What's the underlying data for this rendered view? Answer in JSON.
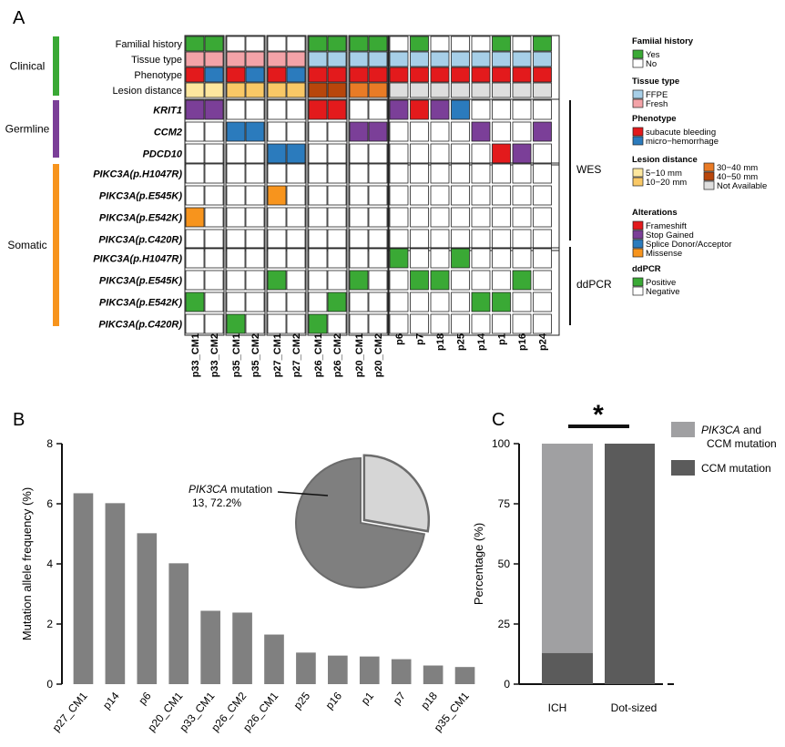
{
  "panel_labels": {
    "a": "A",
    "b": "B",
    "c": "C"
  },
  "colors": {
    "clinical": "#3aa935",
    "germline": "#7b3f98",
    "somatic": "#f7941d",
    "cell_border": "#222222",
    "familial_yes": "#3aa935",
    "ffpe": "#a7cfe8",
    "fresh": "#f3a3a8",
    "subacute": "#e31a1c",
    "micro": "#2b7bbd",
    "dist_5_10": "#fde79e",
    "dist_10_20": "#f9c866",
    "dist_30_40": "#e97b26",
    "dist_40_50": "#b8460b",
    "na": "#dedede",
    "frameshift": "#e31a1c",
    "stop": "#7b3f98",
    "splice": "#2b7bbd",
    "missense": "#f7941d",
    "positive": "#3aa935",
    "bar_b": "#808080",
    "pie_main": "#7f7f7f",
    "pie_slice": "#d6d6d6",
    "pie_edge": "#6c6c6c",
    "c_light": "#a0a0a2",
    "c_dark": "#5b5b5b"
  },
  "heatmap": {
    "columns": [
      "p33_CM1",
      "p33_CM2",
      "p35_CM1",
      "p35_CM2",
      "p27_CM1",
      "p27_CM2",
      "p26_CM1",
      "p26_CM2",
      "p20_CM1",
      "p20_CM2",
      "p6",
      "p7",
      "p18",
      "p25",
      "p14",
      "p1",
      "p16",
      "p24"
    ],
    "groups": [
      {
        "name": "Clinical",
        "color_key": "clinical"
      },
      {
        "name": "Germline",
        "color_key": "germline"
      },
      {
        "name": "Somatic",
        "color_key": "somatic"
      }
    ],
    "clinical_rows": [
      {
        "label": "Familial history",
        "cells": [
          "familial_yes",
          "familial_yes",
          "",
          "",
          "",
          "",
          "familial_yes",
          "familial_yes",
          "familial_yes",
          "familial_yes",
          "",
          "familial_yes",
          "",
          "",
          "",
          "familial_yes",
          "",
          "familial_yes"
        ]
      },
      {
        "label": "Tissue type",
        "cells": [
          "fresh",
          "fresh",
          "fresh",
          "fresh",
          "fresh",
          "fresh",
          "ffpe",
          "ffpe",
          "ffpe",
          "ffpe",
          "ffpe",
          "ffpe",
          "ffpe",
          "ffpe",
          "ffpe",
          "ffpe",
          "ffpe",
          "ffpe"
        ]
      },
      {
        "label": "Phenotype",
        "cells": [
          "subacute",
          "micro",
          "subacute",
          "micro",
          "subacute",
          "micro",
          "subacute",
          "subacute",
          "subacute",
          "subacute",
          "subacute",
          "subacute",
          "subacute",
          "subacute",
          "subacute",
          "subacute",
          "subacute",
          "subacute"
        ]
      },
      {
        "label": "Lesion distance",
        "cells": [
          "dist_5_10",
          "dist_5_10",
          "dist_10_20",
          "dist_10_20",
          "dist_10_20",
          "dist_10_20",
          "dist_40_50",
          "dist_40_50",
          "dist_30_40",
          "dist_30_40",
          "na",
          "na",
          "na",
          "na",
          "na",
          "na",
          "na",
          "na"
        ]
      }
    ],
    "germline_rows": [
      {
        "label": "KRIT1",
        "cells": [
          "stop",
          "stop",
          "",
          "",
          "",
          "",
          "frameshift",
          "frameshift",
          "",
          "",
          "stop",
          "frameshift",
          "stop",
          "splice",
          "",
          "",
          "",
          ""
        ]
      },
      {
        "label": "CCM2",
        "cells": [
          "",
          "",
          "splice",
          "splice",
          "",
          "",
          "",
          "",
          "stop",
          "stop",
          "",
          "",
          "",
          "",
          "stop",
          "",
          "",
          "stop"
        ]
      },
      {
        "label": "PDCD10",
        "cells": [
          "",
          "",
          "",
          "",
          "splice",
          "splice",
          "",
          "",
          "",
          "",
          "",
          "",
          "",
          "",
          "",
          "frameshift",
          "stop",
          ""
        ]
      }
    ],
    "wes_rows": [
      {
        "label": "PIKC3A(p.H1047R)",
        "cells": [
          "",
          "",
          "",
          "",
          "",
          "",
          "",
          "",
          "",
          "",
          "",
          "",
          "",
          "",
          "",
          "",
          "",
          ""
        ]
      },
      {
        "label": "PIKC3A(p.E545K)",
        "cells": [
          "",
          "",
          "",
          "",
          "missense",
          "",
          "",
          "",
          "",
          "",
          "",
          "",
          "",
          "",
          "",
          "",
          "",
          ""
        ]
      },
      {
        "label": "PIKC3A(p.E542K)",
        "cells": [
          "missense",
          "",
          "",
          "",
          "",
          "",
          "",
          "",
          "",
          "",
          "",
          "",
          "",
          "",
          "",
          "",
          "",
          ""
        ]
      },
      {
        "label": "PIKC3A(p.C420R)",
        "cells": [
          "",
          "",
          "",
          "",
          "",
          "",
          "",
          "",
          "",
          "",
          "",
          "",
          "",
          "",
          "",
          "",
          "",
          ""
        ]
      }
    ],
    "ddpcr_rows": [
      {
        "label": "PIKC3A(p.H1047R)",
        "cells": [
          "",
          "",
          "",
          "",
          "",
          "",
          "",
          "",
          "",
          "",
          "positive",
          "",
          "",
          "positive",
          "",
          "",
          "",
          ""
        ]
      },
      {
        "label": "PIKC3A(p.E545K)",
        "cells": [
          "",
          "",
          "",
          "",
          "positive",
          "",
          "",
          "",
          "positive",
          "",
          "",
          "positive",
          "positive",
          "",
          "",
          "",
          "positive",
          ""
        ]
      },
      {
        "label": "PIKC3A(p.E542K)",
        "cells": [
          "positive",
          "",
          "",
          "",
          "",
          "",
          "",
          "positive",
          "",
          "",
          "",
          "",
          "",
          "",
          "positive",
          "positive",
          "",
          ""
        ]
      },
      {
        "label": "PIKC3A(p.C420R)",
        "cells": [
          "",
          "",
          "positive",
          "",
          "",
          "",
          "positive",
          "",
          "",
          "",
          "",
          "",
          "",
          "",
          "",
          "",
          "",
          ""
        ]
      }
    ],
    "bracket_labels": {
      "wes": "WES",
      "ddpcr": "ddPCR"
    }
  },
  "legend": [
    {
      "title": "Famiial history",
      "items": [
        {
          "label": "Yes",
          "color_key": "familial_yes"
        },
        {
          "label": "No",
          "color_key": ""
        }
      ]
    },
    {
      "title": "Tissue type",
      "items": [
        {
          "label": "FFPE",
          "color_key": "ffpe"
        },
        {
          "label": "Fresh",
          "color_key": "fresh"
        }
      ]
    },
    {
      "title": "Phenotype",
      "items": [
        {
          "label": "subacute bleeding",
          "color_key": "subacute"
        },
        {
          "label": "micro−hemorrhage",
          "color_key": "micro"
        }
      ]
    },
    {
      "title": "Lesion distance",
      "items": [
        {
          "label": "5−10 mm",
          "color_key": "dist_5_10"
        },
        {
          "label": "10−20 mm",
          "color_key": "dist_10_20"
        }
      ],
      "items_right": [
        {
          "label": "30−40 mm",
          "color_key": "dist_30_40"
        },
        {
          "label": "40−50 mm",
          "color_key": "dist_40_50"
        },
        {
          "label": "Not Available",
          "color_key": "na"
        }
      ]
    },
    {
      "title": "Alterations",
      "items": [
        {
          "label": "Frameshift",
          "color_key": "frameshift"
        },
        {
          "label": "Stop Gained",
          "color_key": "stop"
        },
        {
          "label": "Splice Donor/Acceptor",
          "color_key": "splice"
        },
        {
          "label": "Missense",
          "color_key": "missense"
        }
      ]
    },
    {
      "title": "ddPCR",
      "items": [
        {
          "label": "Positive",
          "color_key": "positive"
        },
        {
          "label": "Negative",
          "color_key": ""
        }
      ]
    }
  ],
  "chart_data": [
    {
      "type": "bar",
      "panel": "B",
      "ylabel": "Mutation allele frequency (%)",
      "ylim": [
        0,
        8
      ],
      "yticks": [
        0,
        2,
        4,
        6,
        8
      ],
      "categories": [
        "p27_CM1",
        "p14",
        "p6",
        "p20_CM1",
        "p33_CM1",
        "p26_CM2",
        "p26_CM1",
        "p25",
        "p16",
        "p1",
        "p7",
        "p18",
        "p35_CM1"
      ],
      "values": [
        6.35,
        6.02,
        5.02,
        4.02,
        2.44,
        2.38,
        1.65,
        1.05,
        0.95,
        0.92,
        0.83,
        0.62,
        0.57
      ]
    },
    {
      "type": "pie",
      "panel": "B-inset",
      "slices": [
        {
          "label": "PIK3CA mutation",
          "count": 13,
          "percent": 72.2
        },
        {
          "label": "",
          "count": 5,
          "percent": 27.8
        }
      ],
      "annotation_gene": "PIK3CA",
      "annotation_rest": " mutation",
      "annotation_value": "13, 72.2%"
    },
    {
      "type": "bar",
      "panel": "C",
      "stacked": true,
      "ylabel": "Percentage (%)",
      "ylim": [
        0,
        100
      ],
      "yticks": [
        0,
        25,
        50,
        75,
        100
      ],
      "categories": [
        "ICH",
        "Dot-sized"
      ],
      "series": [
        {
          "name": "CCM mutation",
          "values": [
            13,
            100
          ]
        },
        {
          "name": "PIK3CA and CCM mutation",
          "values": [
            87,
            0
          ]
        }
      ],
      "legend_items": [
        {
          "gene": "PIK3CA",
          "rest": " and",
          "line2": "CCM mutation",
          "color_key": "c_light"
        },
        {
          "gene": "",
          "rest": "CCM mutation",
          "line2": "",
          "color_key": "c_dark"
        }
      ],
      "significance": "*"
    }
  ]
}
